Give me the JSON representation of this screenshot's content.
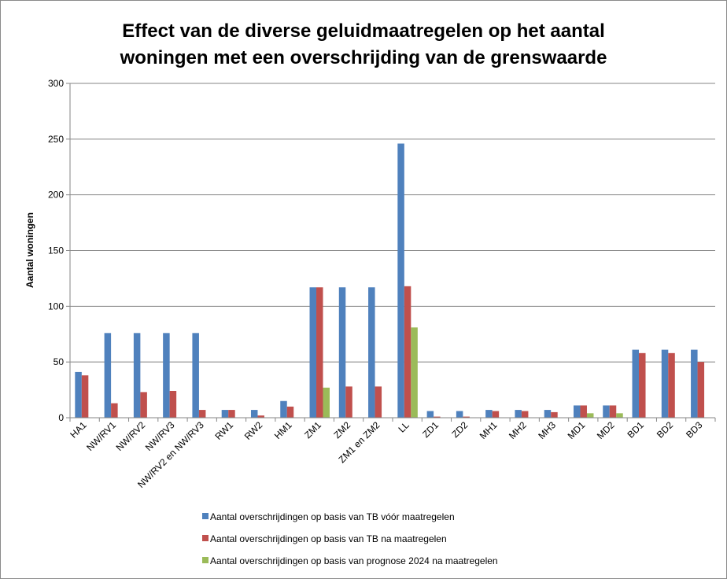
{
  "chart_data": {
    "type": "bar",
    "title_lines": [
      "Effect van de diverse geluidmaatregelen op het aantal",
      "woningen met een overschrijding van de grenswaarde"
    ],
    "xlabel": "",
    "ylabel": "Aantal woningen",
    "ylim": [
      0,
      300
    ],
    "yticks": [
      0,
      50,
      100,
      150,
      200,
      250,
      300
    ],
    "grid": true,
    "legend_position": "bottom",
    "categories": [
      "HA1",
      "NW/RV1",
      "NW/RV2",
      "NW/RV3",
      "NW/RV2 en NW/RV3",
      "RW1",
      "RW2",
      "HM1",
      "ZM1",
      "ZM2",
      "ZM1 en ZM2",
      "LL",
      "ZD1",
      "ZD2",
      "MH1",
      "MH2",
      "MH3",
      "MD1",
      "MD2",
      "BD1",
      "BD2",
      "BD3"
    ],
    "series": [
      {
        "name": "Aantal overschrijdingen op basis van TB vóór maatregelen",
        "color": "#4F81BD",
        "values": [
          41,
          76,
          76,
          76,
          76,
          7,
          7,
          15,
          117,
          117,
          117,
          246,
          6,
          6,
          7,
          7,
          7,
          11,
          11,
          61,
          61,
          61
        ]
      },
      {
        "name": "Aantal overschrijdingen op basis van TB na maatregelen",
        "color": "#C0504D",
        "values": [
          38,
          13,
          23,
          24,
          7,
          7,
          2,
          10,
          117,
          28,
          28,
          118,
          1,
          1,
          6,
          6,
          5,
          11,
          11,
          58,
          58,
          50
        ]
      },
      {
        "name": "Aantal overschrijdingen op basis van prognose 2024 na maatregelen",
        "color": "#9BBB59",
        "values": [
          0,
          0,
          0,
          0,
          0,
          0,
          0,
          0,
          27,
          0,
          0,
          81,
          0,
          0,
          0,
          0,
          0,
          4,
          4,
          0,
          0,
          0
        ]
      }
    ]
  }
}
